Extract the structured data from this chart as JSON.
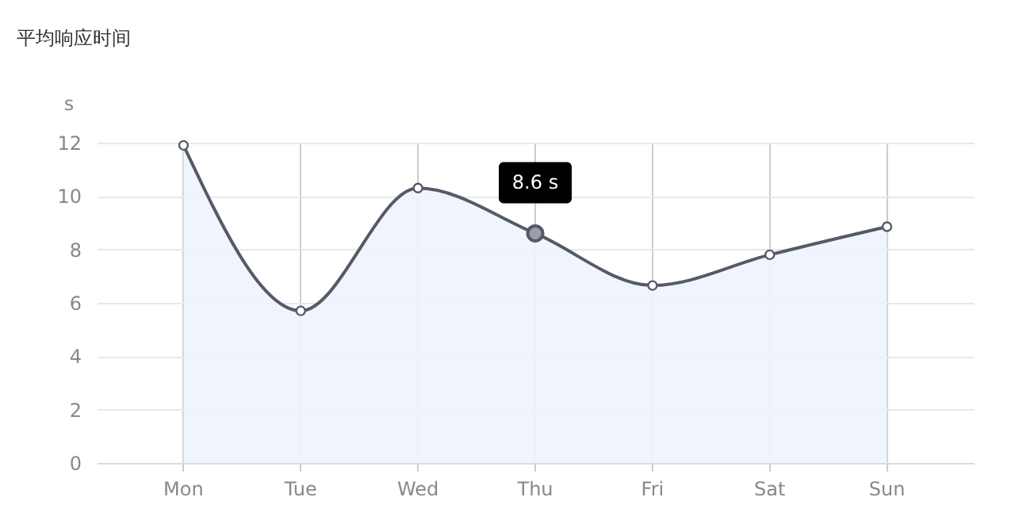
{
  "chart_data": {
    "type": "area",
    "title": "平均响应时间",
    "ylabel": "s",
    "categories": [
      "Mon",
      "Tue",
      "Wed",
      "Thu",
      "Fri",
      "Sat",
      "Sun"
    ],
    "series": [
      {
        "color": "#555a66",
        "values": [
          11.9,
          5.7,
          10.3,
          8.6,
          6.65,
          7.8,
          8.85
        ]
      }
    ],
    "ylim": [
      0,
      12
    ],
    "yticks": [
      0,
      2,
      4,
      6,
      8,
      10,
      12
    ],
    "grid": true,
    "marker": "circle",
    "line_style": "solid",
    "annotations": [
      {
        "text": "8.6 s",
        "x": "Thu",
        "y": 8.6
      }
    ]
  }
}
